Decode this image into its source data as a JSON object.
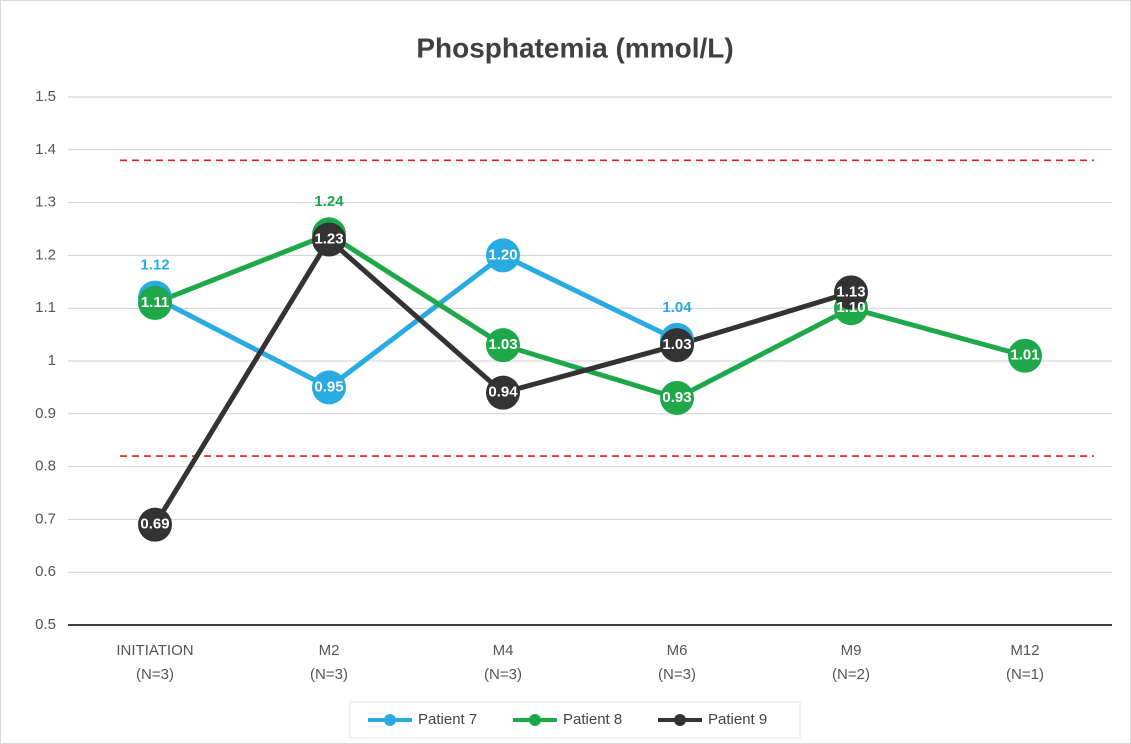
{
  "chart_data": {
    "type": "line",
    "title": "Phosphatemia (mmol/L)",
    "categories": [
      "INITIATION (N=3)",
      "M2 (N=3)",
      "M4 (N=3)",
      "M6 (N=3)",
      "M9 (N=2)",
      "M12 (N=1)"
    ],
    "series": [
      {
        "name": "Patient 7",
        "color": "#29abe2",
        "values": [
          1.12,
          0.95,
          1.2,
          1.04,
          null,
          null
        ],
        "value_labels": [
          "1.12",
          "0.95",
          "1.20",
          "1.04",
          null,
          null
        ]
      },
      {
        "name": "Patient 8",
        "color": "#1ea84a",
        "values": [
          1.11,
          1.24,
          1.03,
          0.93,
          1.1,
          1.01
        ],
        "value_labels": [
          "1.11",
          "1.24",
          "1.03",
          "0.93",
          "1.10",
          "1.01"
        ]
      },
      {
        "name": "Patient 9",
        "color": "#333333",
        "values": [
          0.69,
          1.23,
          0.94,
          1.03,
          1.13,
          null
        ],
        "value_labels": [
          "0.69",
          "1.23",
          "0.94",
          "1.03",
          "1.13",
          null
        ]
      }
    ],
    "reference_lines": [
      1.38,
      0.82
    ],
    "reference_color": "#e02020",
    "ylim": [
      0.5,
      1.5
    ],
    "yticks": [
      0.5,
      0.6,
      0.7,
      0.8,
      0.9,
      1,
      1.1,
      1.2,
      1.3,
      1.4,
      1.5
    ],
    "grid": true,
    "legend": "bottom"
  }
}
